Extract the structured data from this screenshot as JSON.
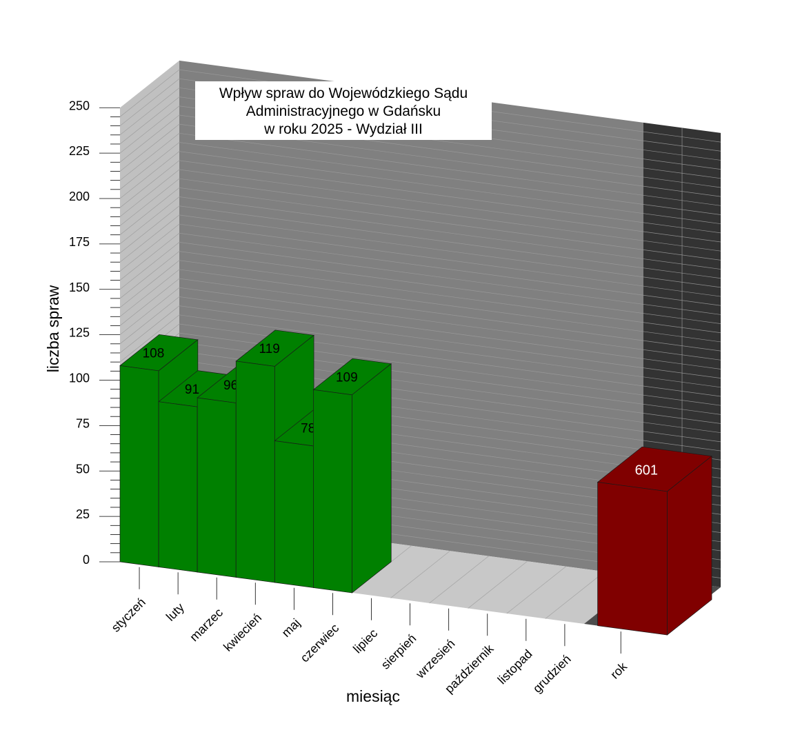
{
  "chart_data": {
    "type": "bar",
    "title_lines": [
      "Wpływ spraw do Wojewódzkiego Sądu",
      "Administracyjnego w Gdańsku",
      "w roku 2025 - Wydział III"
    ],
    "xlabel": "miesiąc",
    "ylabel": "liczba spraw",
    "ylim": [
      0,
      250
    ],
    "yticks": [
      0,
      25,
      50,
      75,
      100,
      125,
      150,
      175,
      200,
      225,
      250
    ],
    "categories": [
      "styczeń",
      "luty",
      "marzec",
      "kwiecień",
      "maj",
      "czerwiec",
      "lipiec",
      "sierpień",
      "wrzesień",
      "październik",
      "listopad",
      "grudzień"
    ],
    "series": [
      {
        "values": [
          108,
          91,
          96,
          119,
          78,
          109,
          null,
          null,
          null,
          null,
          null,
          null
        ],
        "color": "#008000"
      }
    ],
    "total": {
      "label": "rok",
      "value": 601,
      "color": "#800000"
    },
    "grid": true
  },
  "colors": {
    "back_wall": "#808080",
    "side_wall": "#c0c0c0",
    "floor": "#c8c8c8",
    "total_wall": "#333333",
    "total_floor": "#4d4d4d",
    "bar_green": "#008000",
    "bar_red": "#800000"
  }
}
